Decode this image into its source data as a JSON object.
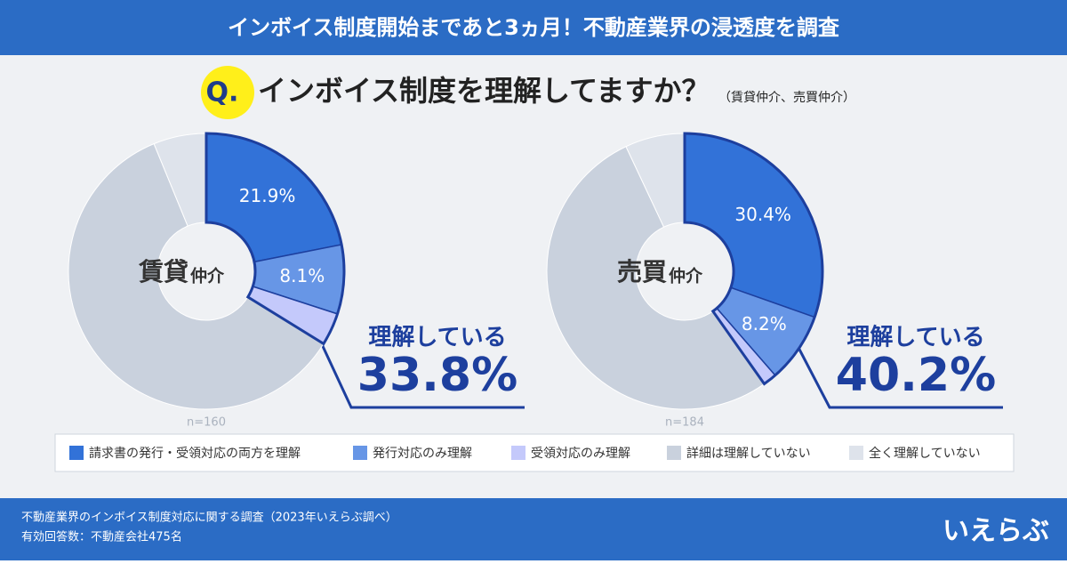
{
  "header": {
    "title": "インボイス制度開始まであと3ヵ月！不動産業界の浸透度を調査"
  },
  "question": {
    "mark": "Q.",
    "text": "インボイス制度を理解してますか？",
    "note": "（賃貸仲介、売買仲介）"
  },
  "chart_data": [
    {
      "type": "pie",
      "center_label": {
        "main": "賃貸",
        "sub": "仲介"
      },
      "n": "n=160",
      "categories": [
        "請求書の発行・受領対応の両方を理解",
        "発行対応のみ理解",
        "受領対応のみ理解",
        "詳細は理解していない",
        "全く理解していない"
      ],
      "values": [
        21.9,
        8.1,
        3.8,
        60.0,
        6.2
      ],
      "value_labels": [
        "21.9%",
        "8.1%",
        null,
        null,
        null
      ],
      "colors": [
        "#3272d8",
        "#6796e6",
        "#c4c9fb",
        "#c9d1dd",
        "#dee3eb"
      ],
      "annotation": {
        "label": "理解している",
        "value": "33.8%"
      }
    },
    {
      "type": "pie",
      "center_label": {
        "main": "売買",
        "sub": "仲介"
      },
      "n": "n=184",
      "categories": [
        "請求書の発行・受領対応の両方を理解",
        "発行対応のみ理解",
        "受領対応のみ理解",
        "詳細は理解していない",
        "全く理解していない"
      ],
      "values": [
        30.4,
        8.2,
        1.6,
        52.8,
        7.0
      ],
      "value_labels": [
        "30.4%",
        "8.2%",
        null,
        null,
        null
      ],
      "colors": [
        "#3272d8",
        "#6796e6",
        "#c4c9fb",
        "#c9d1dd",
        "#dee3eb"
      ],
      "annotation": {
        "label": "理解している",
        "value": "40.2%"
      }
    }
  ],
  "footer": {
    "lines": [
      "不動産業界のインボイス制度対応に関する調査（2023年いえらぶ調べ）",
      "有効回答数：不動産会社475名"
    ],
    "logo": "いえらぶ"
  }
}
